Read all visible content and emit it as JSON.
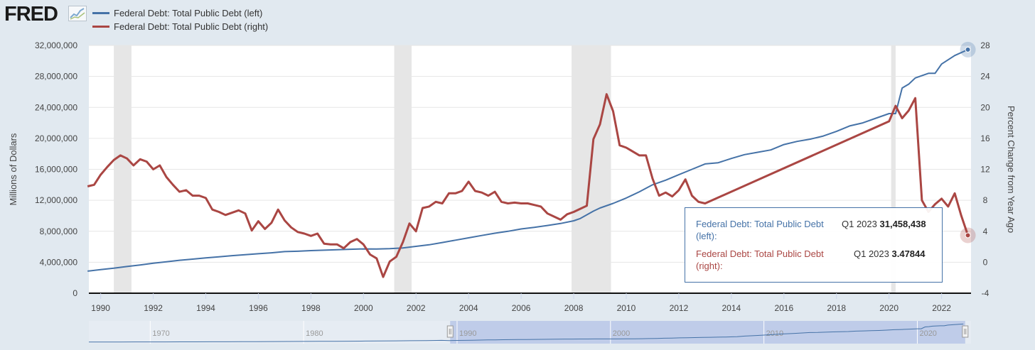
{
  "header": {
    "logo": "FRED",
    "legend": [
      {
        "label": "Federal Debt: Total Public Debt (left)",
        "color": "#4572a7"
      },
      {
        "label": "Federal Debt: Total Public Debt (right)",
        "color": "#aa4643"
      }
    ]
  },
  "tooltip": {
    "rows": [
      {
        "name": "Federal Debt: Total Public Debt (left):",
        "date": "Q1 2023",
        "value": "31,458,438",
        "color": "#4572a7"
      },
      {
        "name": "Federal Debt: Total Public Debt (right):",
        "date": "Q1 2023",
        "value": "3.47844",
        "color": "#aa4643"
      }
    ]
  },
  "chart_data": {
    "type": "line",
    "ylabel_left": "Millions of Dollars",
    "ylabel_right": "Percent Change from Year Ago",
    "ylim_left": [
      0,
      32000000
    ],
    "ylim_right": [
      -4,
      28
    ],
    "yticks_left": [
      "0",
      "4,000,000",
      "8,000,000",
      "12,000,000",
      "16,000,000",
      "20,000,000",
      "24,000,000",
      "28,000,000",
      "32,000,000"
    ],
    "yticks_right": [
      "-4",
      "0",
      "4",
      "8",
      "12",
      "16",
      "20",
      "24",
      "28"
    ],
    "xlim": [
      1989.55,
      2023.12
    ],
    "xticks": [
      "1990",
      "1992",
      "1994",
      "1996",
      "1998",
      "2000",
      "2002",
      "2004",
      "2006",
      "2008",
      "2010",
      "2012",
      "2014",
      "2016",
      "2018",
      "2020",
      "2022"
    ],
    "recessions": [
      [
        1990.5,
        1991.17
      ],
      [
        2001.17,
        2001.83
      ],
      [
        2007.92,
        2009.42
      ],
      [
        2020.08,
        2020.25
      ]
    ],
    "navigator_labels": [
      "1970",
      "1980",
      "1990",
      "2000",
      "2010",
      "2020"
    ],
    "navigator_range": [
      1966,
      2023.5
    ],
    "navigator_selection": [
      1989.55,
      2023.12
    ],
    "series": [
      {
        "name": "Federal Debt: Total Public Debt (left)",
        "color": "#4572a7",
        "axis": "left",
        "x": [
          1989.5,
          1990,
          1990.5,
          1991,
          1991.5,
          1992,
          1992.5,
          1993,
          1993.5,
          1994,
          1994.5,
          1995,
          1995.5,
          1996,
          1996.5,
          1997,
          1997.5,
          1998,
          1998.5,
          1999,
          1999.5,
          2000,
          2000.5,
          2001,
          2001.5,
          2002,
          2002.5,
          2003,
          2003.5,
          2004,
          2004.5,
          2005,
          2005.5,
          2006,
          2006.5,
          2007,
          2007.5,
          2008,
          2008.25,
          2008.75,
          2009,
          2009.5,
          2010,
          2010.5,
          2011,
          2011.5,
          2012,
          2012.5,
          2013,
          2013.5,
          2014,
          2014.5,
          2015,
          2015.5,
          2016,
          2016.5,
          2017,
          2017.5,
          2018,
          2018.5,
          2019,
          2019.5,
          2020,
          2020.25,
          2020.5,
          2020.75,
          2021,
          2021.5,
          2021.75,
          2022,
          2022.5,
          2023
        ],
        "y": [
          2850000,
          3050000,
          3230000,
          3450000,
          3650000,
          3880000,
          4050000,
          4250000,
          4400000,
          4570000,
          4690000,
          4850000,
          4970000,
          5100000,
          5220000,
          5370000,
          5420000,
          5500000,
          5560000,
          5610000,
          5680000,
          5720000,
          5700000,
          5750000,
          5850000,
          6050000,
          6250000,
          6550000,
          6850000,
          7150000,
          7450000,
          7750000,
          8000000,
          8300000,
          8500000,
          8750000,
          9000000,
          9350000,
          9650000,
          10600000,
          11000000,
          11600000,
          12300000,
          13100000,
          14000000,
          14600000,
          15300000,
          16000000,
          16700000,
          16850000,
          17400000,
          17900000,
          18200000,
          18500000,
          19200000,
          19600000,
          19900000,
          20300000,
          20900000,
          21600000,
          22000000,
          22600000,
          23200000,
          23200000,
          26500000,
          27000000,
          27800000,
          28400000,
          28400000,
          29600000,
          30700000,
          31458438
        ]
      },
      {
        "name": "Federal Debt: Total Public Debt (right)",
        "color": "#aa4643",
        "axis": "right",
        "x": [
          1989.5,
          1989.75,
          1990,
          1990.25,
          1990.5,
          1990.75,
          1991,
          1991.25,
          1991.5,
          1991.75,
          1992,
          1992.25,
          1992.5,
          1992.75,
          1993,
          1993.25,
          1993.5,
          1993.75,
          1994,
          1994.25,
          1994.5,
          1994.75,
          1995,
          1995.25,
          1995.5,
          1995.75,
          1996,
          1996.25,
          1996.5,
          1996.75,
          1997,
          1997.25,
          1997.5,
          1997.75,
          1998,
          1998.25,
          1998.5,
          1998.75,
          1999,
          1999.25,
          1999.5,
          1999.75,
          2000,
          2000.25,
          2000.5,
          2000.75,
          2001,
          2001.25,
          2001.5,
          2001.75,
          2002,
          2002.25,
          2002.5,
          2002.75,
          2003,
          2003.25,
          2003.5,
          2003.75,
          2004,
          2004.25,
          2004.5,
          2004.75,
          2005,
          2005.25,
          2005.5,
          2005.75,
          2006,
          2006.25,
          2006.5,
          2006.75,
          2007,
          2007.25,
          2007.5,
          2007.75,
          2008,
          2008.25,
          2008.5,
          2008.75,
          2009,
          2009.25,
          2009.5,
          2009.75,
          2010,
          2010.25,
          2010.5,
          2010.75,
          2011,
          2011.25,
          2011.5,
          2011.75,
          2012,
          2012.25,
          2012.5,
          2012.75,
          2013,
          2020,
          2020.25,
          2020.5,
          2020.75,
          2021,
          2021.25,
          2021.5,
          2021.75,
          2022,
          2022.25,
          2022.5,
          2022.75,
          2023
        ],
        "y": [
          9.8,
          10.0,
          11.3,
          12.3,
          13.2,
          13.8,
          13.4,
          12.5,
          13.3,
          13.0,
          12.0,
          12.5,
          11.0,
          10.0,
          9.1,
          9.3,
          8.6,
          8.6,
          8.3,
          6.8,
          6.5,
          6.1,
          6.4,
          6.7,
          6.3,
          4.1,
          5.3,
          4.3,
          5.1,
          6.8,
          5.4,
          4.5,
          3.9,
          3.7,
          3.4,
          3.7,
          2.4,
          2.3,
          2.3,
          1.8,
          2.6,
          3.0,
          2.3,
          1.0,
          0.5,
          -1.9,
          0.1,
          0.7,
          2.6,
          5.0,
          4.0,
          7.0,
          7.2,
          7.8,
          7.6,
          8.9,
          8.9,
          9.2,
          10.4,
          9.2,
          9.0,
          8.6,
          9.1,
          7.8,
          7.6,
          7.7,
          7.6,
          7.6,
          7.4,
          7.2,
          6.3,
          5.9,
          5.5,
          6.2,
          6.5,
          6.9,
          7.3,
          15.9,
          17.8,
          21.7,
          19.5,
          15.1,
          14.8,
          14.3,
          13.8,
          13.8,
          10.8,
          8.6,
          9.0,
          8.5,
          9.3,
          10.7,
          8.6,
          7.8,
          7.6,
          18.2,
          20.2,
          18.6,
          19.6,
          21.2,
          8.0,
          6.5,
          7.5,
          8.2,
          7.2,
          8.9,
          6.0,
          3.47844
        ]
      }
    ]
  }
}
